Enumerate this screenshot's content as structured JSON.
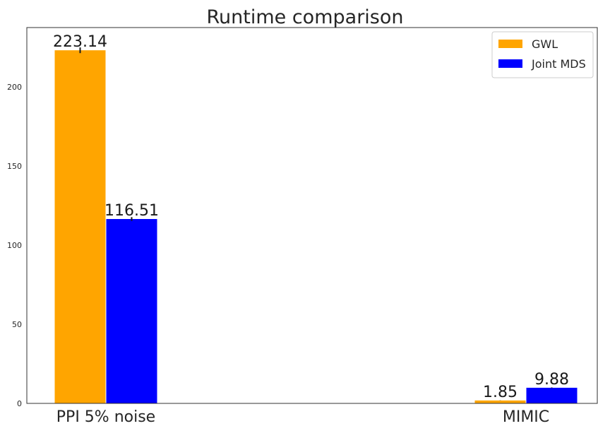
{
  "chart_data": {
    "type": "bar",
    "title": "Runtime comparison",
    "xlabel": "",
    "ylabel": "",
    "categories": [
      "PPI 5% noise",
      "MIMIC"
    ],
    "series": [
      {
        "name": "GWL",
        "values": [
          223.14,
          1.85
        ],
        "labels": [
          "223.14",
          "1.85"
        ],
        "error": [
          1.8,
          0.05
        ],
        "color": "#FFA500"
      },
      {
        "name": "Joint MDS",
        "values": [
          116.51,
          9.88
        ],
        "labels": [
          "116.51",
          "9.88"
        ],
        "error": [
          1.2,
          0.2
        ],
        "color": "#0000FF"
      }
    ],
    "ylim": [
      0,
      237.5
    ],
    "yticks": [
      0,
      50,
      100,
      150,
      200
    ],
    "grid": false,
    "legend_position": "top-right"
  }
}
